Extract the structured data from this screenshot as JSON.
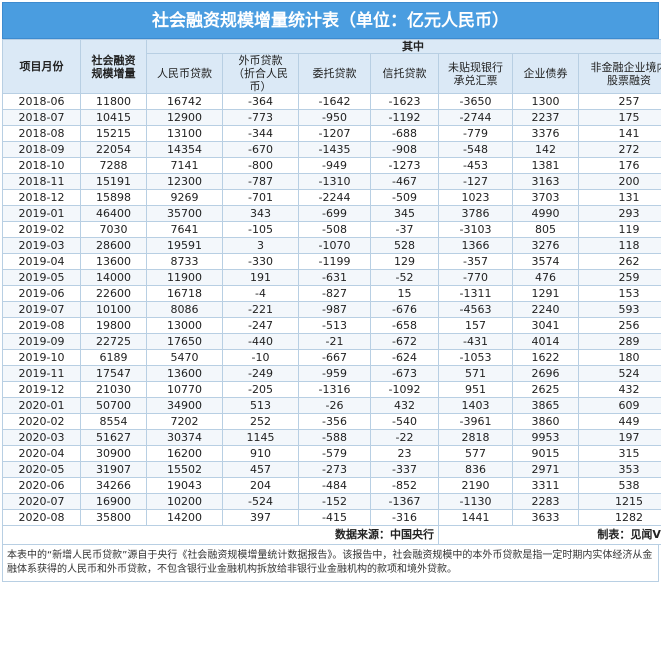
{
  "title": "社会融资规模增量统计表（单位：亿元人民币）",
  "headers": {
    "month": "项目月份",
    "total": "社会融资\n规模增量",
    "group": "其中",
    "rmb_loans": "人民币贷款",
    "fx_loans": "外币贷款\n（折合人民\n币）",
    "entrusted": "委托贷款",
    "trust": "信托贷款",
    "bills": "未贴现银行\n承兑汇票",
    "bonds": "企业债券",
    "equity": "非金融企业境内\n股票融资"
  },
  "rows": [
    [
      "2018-06",
      "11800",
      "16742",
      "-364",
      "-1642",
      "-1623",
      "-3650",
      "1300",
      "257"
    ],
    [
      "2018-07",
      "10415",
      "12900",
      "-773",
      "-950",
      "-1192",
      "-2744",
      "2237",
      "175"
    ],
    [
      "2018-08",
      "15215",
      "13100",
      "-344",
      "-1207",
      "-688",
      "-779",
      "3376",
      "141"
    ],
    [
      "2018-09",
      "22054",
      "14354",
      "-670",
      "-1435",
      "-908",
      "-548",
      "142",
      "272"
    ],
    [
      "2018-10",
      "7288",
      "7141",
      "-800",
      "-949",
      "-1273",
      "-453",
      "1381",
      "176"
    ],
    [
      "2018-11",
      "15191",
      "12300",
      "-787",
      "-1310",
      "-467",
      "-127",
      "3163",
      "200"
    ],
    [
      "2018-12",
      "15898",
      "9269",
      "-701",
      "-2244",
      "-509",
      "1023",
      "3703",
      "131"
    ],
    [
      "2019-01",
      "46400",
      "35700",
      "343",
      "-699",
      "345",
      "3786",
      "4990",
      "293"
    ],
    [
      "2019-02",
      "7030",
      "7641",
      "-105",
      "-508",
      "-37",
      "-3103",
      "805",
      "119"
    ],
    [
      "2019-03",
      "28600",
      "19591",
      "3",
      "-1070",
      "528",
      "1366",
      "3276",
      "118"
    ],
    [
      "2019-04",
      "13600",
      "8733",
      "-330",
      "-1199",
      "129",
      "-357",
      "3574",
      "262"
    ],
    [
      "2019-05",
      "14000",
      "11900",
      "191",
      "-631",
      "-52",
      "-770",
      "476",
      "259"
    ],
    [
      "2019-06",
      "22600",
      "16718",
      "-4",
      "-827",
      "15",
      "-1311",
      "1291",
      "153"
    ],
    [
      "2019-07",
      "10100",
      "8086",
      "-221",
      "-987",
      "-676",
      "-4563",
      "2240",
      "593"
    ],
    [
      "2019-08",
      "19800",
      "13000",
      "-247",
      "-513",
      "-658",
      "157",
      "3041",
      "256"
    ],
    [
      "2019-09",
      "22725",
      "17650",
      "-440",
      "-21",
      "-672",
      "-431",
      "4014",
      "289"
    ],
    [
      "2019-10",
      "6189",
      "5470",
      "-10",
      "-667",
      "-624",
      "-1053",
      "1622",
      "180"
    ],
    [
      "2019-11",
      "17547",
      "13600",
      "-249",
      "-959",
      "-673",
      "571",
      "2696",
      "524"
    ],
    [
      "2019-12",
      "21030",
      "10770",
      "-205",
      "-1316",
      "-1092",
      "951",
      "2625",
      "432"
    ],
    [
      "2020-01",
      "50700",
      "34900",
      "513",
      "-26",
      "432",
      "1403",
      "3865",
      "609"
    ],
    [
      "2020-02",
      "8554",
      "7202",
      "252",
      "-356",
      "-540",
      "-3961",
      "3860",
      "449"
    ],
    [
      "2020-03",
      "51627",
      "30374",
      "1145",
      "-588",
      "-22",
      "2818",
      "9953",
      "197"
    ],
    [
      "2020-04",
      "30900",
      "16200",
      "910",
      "-579",
      "23",
      "577",
      "9015",
      "315"
    ],
    [
      "2020-05",
      "31907",
      "15502",
      "457",
      "-273",
      "-337",
      "836",
      "2971",
      "353"
    ],
    [
      "2020-06",
      "34266",
      "19043",
      "204",
      "-484",
      "-852",
      "2190",
      "3311",
      "538"
    ],
    [
      "2020-07",
      "16900",
      "10200",
      "-524",
      "-152",
      "-1367",
      "-1130",
      "2283",
      "1215"
    ],
    [
      "2020-08",
      "35800",
      "14200",
      "397",
      "-415",
      "-316",
      "1441",
      "3633",
      "1282"
    ]
  ],
  "footer": {
    "source": "数据来源：中国央行",
    "maker": "制表：见闻VIP"
  },
  "note": "本表中的“新增人民币贷款”源自于央行《社会融资规模增量统计数据报告》。该报告中，社会融资规模中的本外币贷款是指一定时期内实体经济从金融体系获得的人民币和外币贷款，不包含银行业金融机构拆放给非银行业金融机构的款项和境外贷款。"
}
